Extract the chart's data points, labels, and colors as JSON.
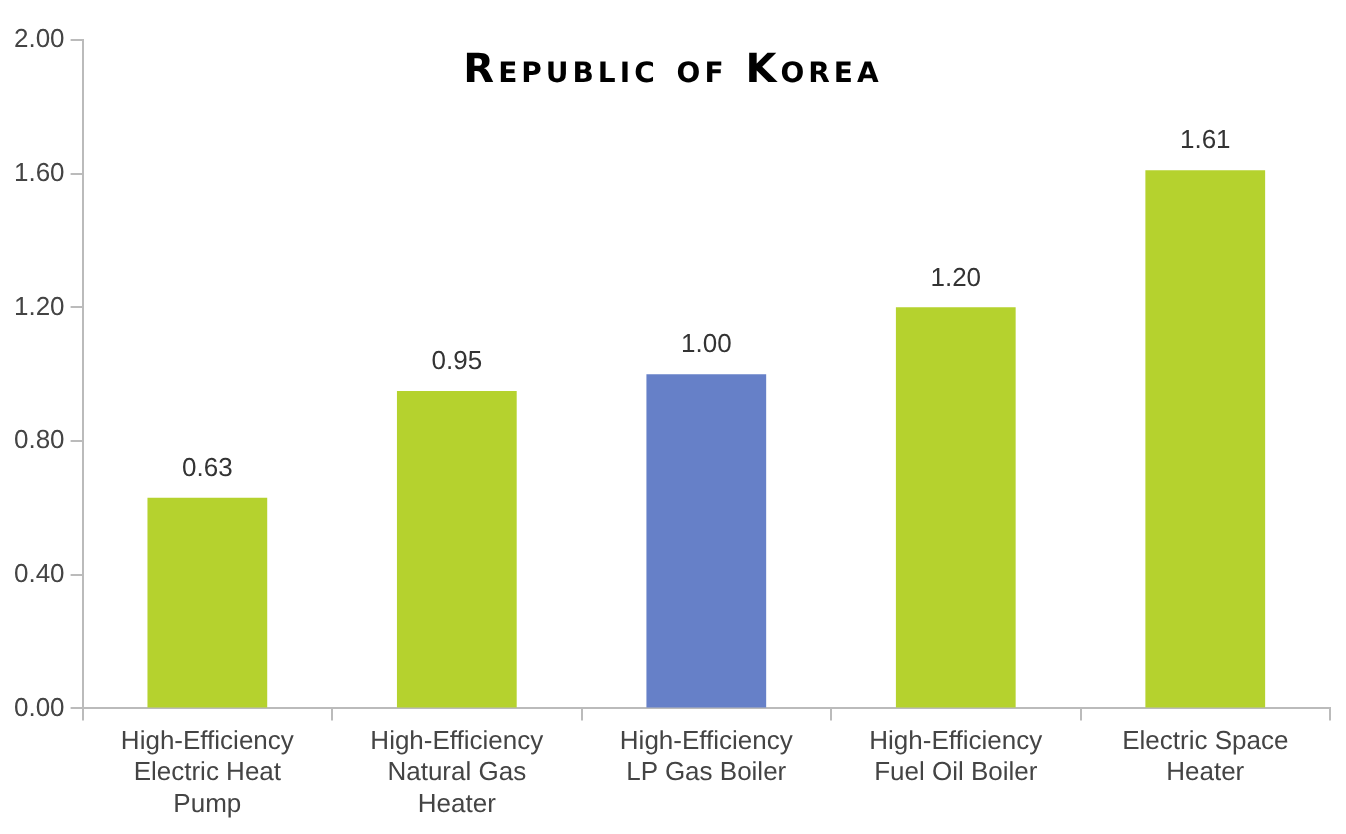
{
  "chart_data": {
    "type": "bar",
    "title": "Republic of Korea",
    "categories": [
      "High-Efficiency Electric Heat Pump",
      "High-Efficiency Natural Gas Heater",
      "High-Efficiency LP Gas Boiler",
      "High-Efficiency Fuel Oil Boiler",
      "Electric Space Heater"
    ],
    "values": [
      0.63,
      0.95,
      1.0,
      1.2,
      1.61
    ],
    "colors": [
      "#b5d22e",
      "#b5d22e",
      "#6680c8",
      "#b5d22e",
      "#b5d22e"
    ],
    "value_labels": [
      "0.63",
      "0.95",
      "1.00",
      "1.20",
      "1.61"
    ],
    "ylim": [
      0,
      2
    ],
    "yticks": [
      {
        "value": 0,
        "label": "0.00"
      },
      {
        "value": 0.4,
        "label": "0.40"
      },
      {
        "value": 0.8,
        "label": "0.80"
      },
      {
        "value": 1.2,
        "label": "1.20"
      },
      {
        "value": 1.6,
        "label": "1.60"
      },
      {
        "value": 2,
        "label": "2.00"
      }
    ],
    "grid": false,
    "legend": false
  }
}
